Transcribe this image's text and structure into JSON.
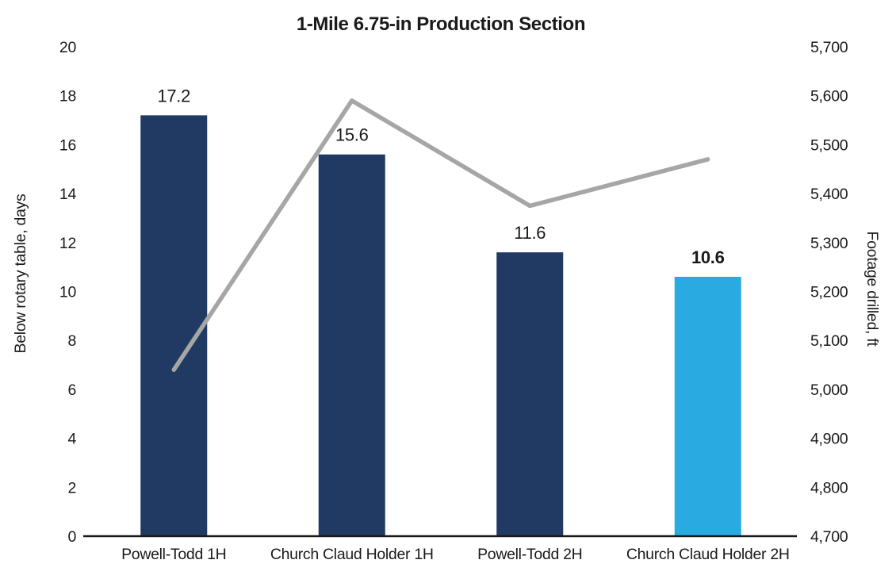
{
  "chart_data": {
    "type": "combo",
    "title": "1-Mile 6.75-in Production Section",
    "categories": [
      "Powell-Todd 1H",
      "Church Claud Holder 1H",
      "Powell-Todd 2H",
      "Church Claud Holder 2H"
    ],
    "series": [
      {
        "name": "Below rotary table, days",
        "type": "bar",
        "axis": "left",
        "values": [
          17.2,
          15.6,
          11.6,
          10.6
        ],
        "labels": [
          "17.2",
          "15.6",
          "11.6",
          "10.6"
        ],
        "label_bold": [
          false,
          false,
          false,
          true
        ],
        "colors": [
          "#213A63",
          "#213A63",
          "#213A63",
          "#29ABE2"
        ]
      },
      {
        "name": "Footage drilled, ft",
        "type": "line",
        "axis": "right",
        "values": [
          5040,
          5590,
          5375,
          5470
        ],
        "color": "#A6A6A6"
      }
    ],
    "left_axis": {
      "label": "Below rotary table, days",
      "min": 0,
      "max": 20,
      "step": 2,
      "ticks": [
        "0",
        "2",
        "4",
        "6",
        "8",
        "10",
        "12",
        "14",
        "16",
        "18",
        "20"
      ]
    },
    "right_axis": {
      "label": "Footage drilled, ft",
      "min": 4700,
      "max": 5700,
      "step": 100,
      "ticks": [
        "4,700",
        "4,800",
        "4,900",
        "5,000",
        "5,100",
        "5,200",
        "5,300",
        "5,400",
        "5,500",
        "5,600",
        "5,700"
      ]
    },
    "grid": false,
    "legend_position": "none",
    "colors": {
      "text": "#1a1a1a",
      "axis_line": "#1a1a1a",
      "background": "#FFFFFF"
    }
  }
}
